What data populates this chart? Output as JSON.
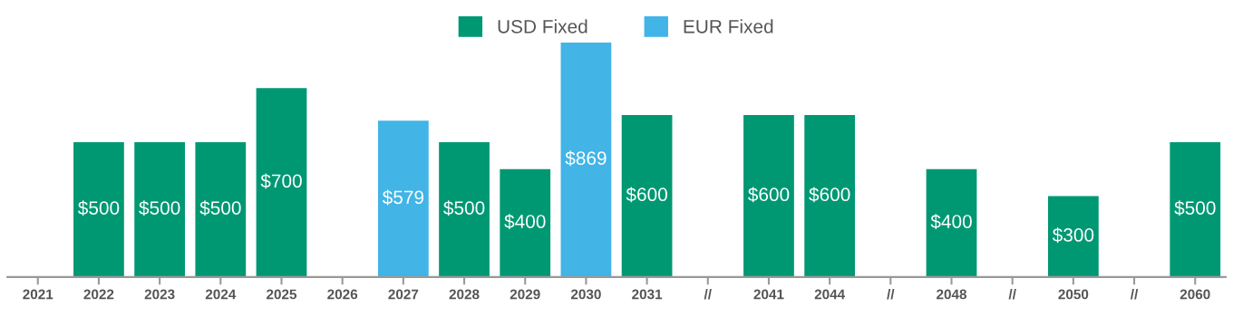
{
  "chart_data": {
    "type": "bar",
    "legend": "top",
    "grid": false,
    "categories": [
      "2021",
      "2022",
      "2023",
      "2024",
      "2025",
      "2026",
      "2027",
      "2028",
      "2029",
      "2030",
      "2031",
      "//",
      "2041",
      "2044",
      "//",
      "2048",
      "//",
      "2050",
      "//",
      "2060"
    ],
    "series": [
      {
        "name": "USD Fixed",
        "color": "#009873",
        "values": [
          null,
          500,
          500,
          500,
          700,
          null,
          null,
          500,
          400,
          null,
          600,
          null,
          600,
          600,
          null,
          400,
          null,
          300,
          null,
          500
        ],
        "value_labels": [
          null,
          "$500",
          "$500",
          "$500",
          "$700",
          null,
          null,
          "$500",
          "$400",
          null,
          "$600",
          null,
          "$600",
          "$600",
          null,
          "$400",
          null,
          "$300",
          null,
          "$500"
        ]
      },
      {
        "name": "EUR Fixed",
        "color": "#42b4e6",
        "values": [
          null,
          null,
          null,
          null,
          null,
          null,
          579,
          null,
          null,
          869,
          null,
          null,
          null,
          null,
          null,
          null,
          null,
          null,
          null,
          null
        ],
        "value_labels": [
          null,
          null,
          null,
          null,
          null,
          null,
          "$579",
          null,
          null,
          "$869",
          null,
          null,
          null,
          null,
          null,
          null,
          null,
          null,
          null,
          null
        ]
      }
    ]
  }
}
